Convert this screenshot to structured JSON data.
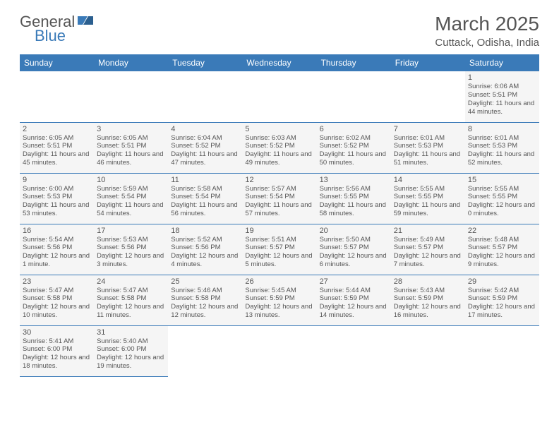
{
  "logo": {
    "text1": "General",
    "text2": "Blue"
  },
  "title": "March 2025",
  "location": "Cuttack, Odisha, India",
  "colors": {
    "header_bg": "#3a7ab8",
    "header_text": "#ffffff",
    "cell_bg": "#f5f5f5",
    "border": "#3a7ab8",
    "text": "#555555"
  },
  "weekdays": [
    "Sunday",
    "Monday",
    "Tuesday",
    "Wednesday",
    "Thursday",
    "Friday",
    "Saturday"
  ],
  "first_day_col": 6,
  "days": [
    {
      "n": "1",
      "sunrise": "6:06 AM",
      "sunset": "5:51 PM",
      "daylight": "11 hours and 44 minutes."
    },
    {
      "n": "2",
      "sunrise": "6:05 AM",
      "sunset": "5:51 PM",
      "daylight": "11 hours and 45 minutes."
    },
    {
      "n": "3",
      "sunrise": "6:05 AM",
      "sunset": "5:51 PM",
      "daylight": "11 hours and 46 minutes."
    },
    {
      "n": "4",
      "sunrise": "6:04 AM",
      "sunset": "5:52 PM",
      "daylight": "11 hours and 47 minutes."
    },
    {
      "n": "5",
      "sunrise": "6:03 AM",
      "sunset": "5:52 PM",
      "daylight": "11 hours and 49 minutes."
    },
    {
      "n": "6",
      "sunrise": "6:02 AM",
      "sunset": "5:52 PM",
      "daylight": "11 hours and 50 minutes."
    },
    {
      "n": "7",
      "sunrise": "6:01 AM",
      "sunset": "5:53 PM",
      "daylight": "11 hours and 51 minutes."
    },
    {
      "n": "8",
      "sunrise": "6:01 AM",
      "sunset": "5:53 PM",
      "daylight": "11 hours and 52 minutes."
    },
    {
      "n": "9",
      "sunrise": "6:00 AM",
      "sunset": "5:53 PM",
      "daylight": "11 hours and 53 minutes."
    },
    {
      "n": "10",
      "sunrise": "5:59 AM",
      "sunset": "5:54 PM",
      "daylight": "11 hours and 54 minutes."
    },
    {
      "n": "11",
      "sunrise": "5:58 AM",
      "sunset": "5:54 PM",
      "daylight": "11 hours and 56 minutes."
    },
    {
      "n": "12",
      "sunrise": "5:57 AM",
      "sunset": "5:54 PM",
      "daylight": "11 hours and 57 minutes."
    },
    {
      "n": "13",
      "sunrise": "5:56 AM",
      "sunset": "5:55 PM",
      "daylight": "11 hours and 58 minutes."
    },
    {
      "n": "14",
      "sunrise": "5:55 AM",
      "sunset": "5:55 PM",
      "daylight": "11 hours and 59 minutes."
    },
    {
      "n": "15",
      "sunrise": "5:55 AM",
      "sunset": "5:55 PM",
      "daylight": "12 hours and 0 minutes."
    },
    {
      "n": "16",
      "sunrise": "5:54 AM",
      "sunset": "5:56 PM",
      "daylight": "12 hours and 1 minute."
    },
    {
      "n": "17",
      "sunrise": "5:53 AM",
      "sunset": "5:56 PM",
      "daylight": "12 hours and 3 minutes."
    },
    {
      "n": "18",
      "sunrise": "5:52 AM",
      "sunset": "5:56 PM",
      "daylight": "12 hours and 4 minutes."
    },
    {
      "n": "19",
      "sunrise": "5:51 AM",
      "sunset": "5:57 PM",
      "daylight": "12 hours and 5 minutes."
    },
    {
      "n": "20",
      "sunrise": "5:50 AM",
      "sunset": "5:57 PM",
      "daylight": "12 hours and 6 minutes."
    },
    {
      "n": "21",
      "sunrise": "5:49 AM",
      "sunset": "5:57 PM",
      "daylight": "12 hours and 7 minutes."
    },
    {
      "n": "22",
      "sunrise": "5:48 AM",
      "sunset": "5:57 PM",
      "daylight": "12 hours and 9 minutes."
    },
    {
      "n": "23",
      "sunrise": "5:47 AM",
      "sunset": "5:58 PM",
      "daylight": "12 hours and 10 minutes."
    },
    {
      "n": "24",
      "sunrise": "5:47 AM",
      "sunset": "5:58 PM",
      "daylight": "12 hours and 11 minutes."
    },
    {
      "n": "25",
      "sunrise": "5:46 AM",
      "sunset": "5:58 PM",
      "daylight": "12 hours and 12 minutes."
    },
    {
      "n": "26",
      "sunrise": "5:45 AM",
      "sunset": "5:59 PM",
      "daylight": "12 hours and 13 minutes."
    },
    {
      "n": "27",
      "sunrise": "5:44 AM",
      "sunset": "5:59 PM",
      "daylight": "12 hours and 14 minutes."
    },
    {
      "n": "28",
      "sunrise": "5:43 AM",
      "sunset": "5:59 PM",
      "daylight": "12 hours and 16 minutes."
    },
    {
      "n": "29",
      "sunrise": "5:42 AM",
      "sunset": "5:59 PM",
      "daylight": "12 hours and 17 minutes."
    },
    {
      "n": "30",
      "sunrise": "5:41 AM",
      "sunset": "6:00 PM",
      "daylight": "12 hours and 18 minutes."
    },
    {
      "n": "31",
      "sunrise": "5:40 AM",
      "sunset": "6:00 PM",
      "daylight": "12 hours and 19 minutes."
    }
  ],
  "labels": {
    "sunrise": "Sunrise:",
    "sunset": "Sunset:",
    "daylight": "Daylight:"
  }
}
